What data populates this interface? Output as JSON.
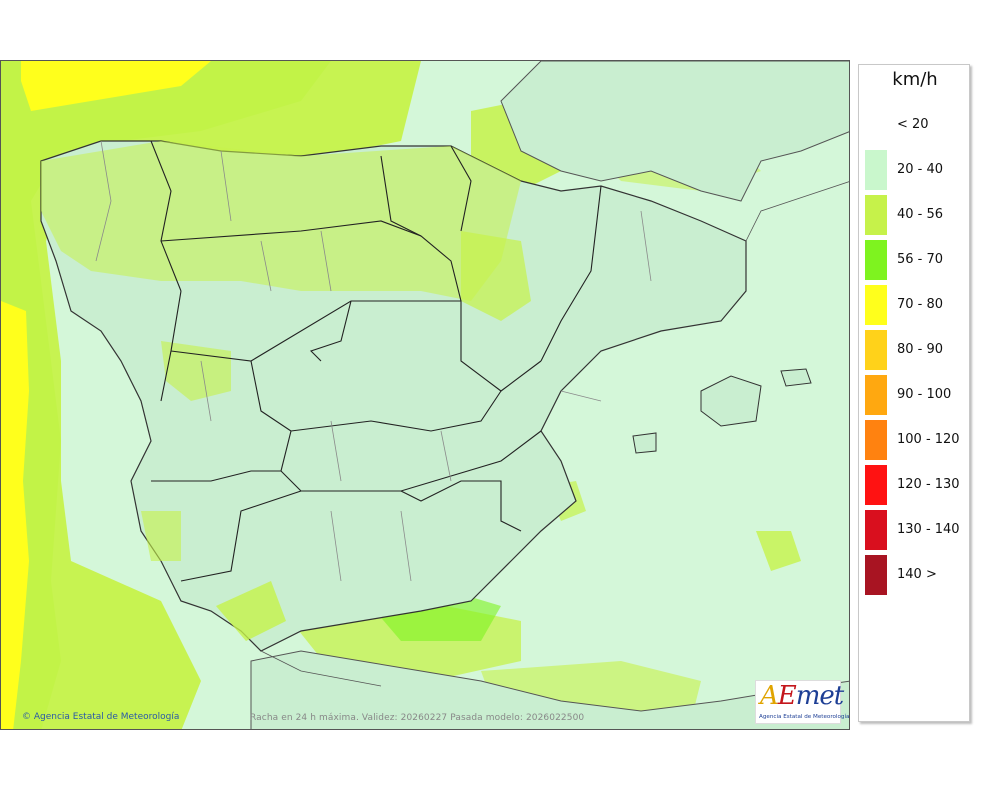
{
  "legend": {
    "unit": "km/h",
    "items": [
      {
        "label": "< 20",
        "color": "#ffffff"
      },
      {
        "label": "20 - 40",
        "color": "#c9f7cc"
      },
      {
        "label": "40 - 56",
        "color": "#c6f24a"
      },
      {
        "label": "56 - 70",
        "color": "#7ef31f"
      },
      {
        "label": "70 - 80",
        "color": "#ffff1c"
      },
      {
        "label": "80 - 90",
        "color": "#ffd21a"
      },
      {
        "label": "90 - 100",
        "color": "#ffa810"
      },
      {
        "label": "100 - 120",
        "color": "#ff8210"
      },
      {
        "label": "120 - 130",
        "color": "#ff1212"
      },
      {
        "label": "130 - 140",
        "color": "#d90f1e"
      },
      {
        "label": "140 >",
        "color": "#a81422"
      }
    ]
  },
  "footer": {
    "copyright": "© Agencia Estatal de Meteorología",
    "caption": "Racha en 24 h máxima. Validez: 20260227 Pasada modelo: 2026022500"
  },
  "logo": {
    "sub": "Agencia Estatal de Meteorología"
  },
  "map_colors": {
    "sea_low": "#d4f7d9",
    "land": "#c9eed0",
    "gust_40_56": "#c6f24a",
    "gust_56_70": "#7ef31f",
    "gust_70_80": "#ffff1c",
    "border": "#333333"
  }
}
